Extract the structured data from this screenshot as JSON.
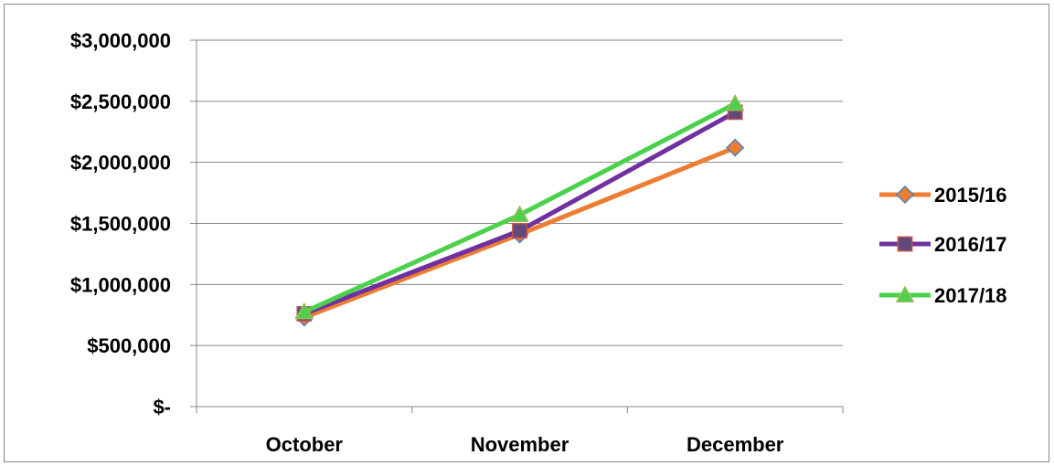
{
  "chart_data": {
    "type": "line",
    "categories": [
      "October",
      "November",
      "December"
    ],
    "series": [
      {
        "name": "2015/16",
        "values": [
          730000,
          1410000,
          2120000
        ],
        "color": "#ED7D31",
        "marker": "diamond",
        "marker_fill": "#ED7D31",
        "marker_stroke": "#4F81BD"
      },
      {
        "name": "2016/17",
        "values": [
          760000,
          1440000,
          2410000
        ],
        "color": "#7030A0",
        "marker": "square",
        "marker_fill": "#604A7B",
        "marker_stroke": "#C0504D"
      },
      {
        "name": "2017/18",
        "values": [
          775000,
          1570000,
          2480000
        ],
        "color": "#4CD14C",
        "marker": "triangle",
        "marker_fill": "#4CD14C",
        "marker_stroke": "#9BBB59"
      }
    ],
    "ylim": [
      0,
      3000000
    ],
    "yticks": [
      0,
      500000,
      1000000,
      1500000,
      2000000,
      2500000,
      3000000
    ],
    "ytick_labels": [
      "$-",
      "$500,000",
      "$1,000,000",
      "$1,500,000",
      "$2,000,000",
      "$2,500,000",
      "$3,000,000"
    ],
    "grid": true,
    "legend_position": "right",
    "xlabel": "",
    "ylabel": "",
    "title": ""
  }
}
